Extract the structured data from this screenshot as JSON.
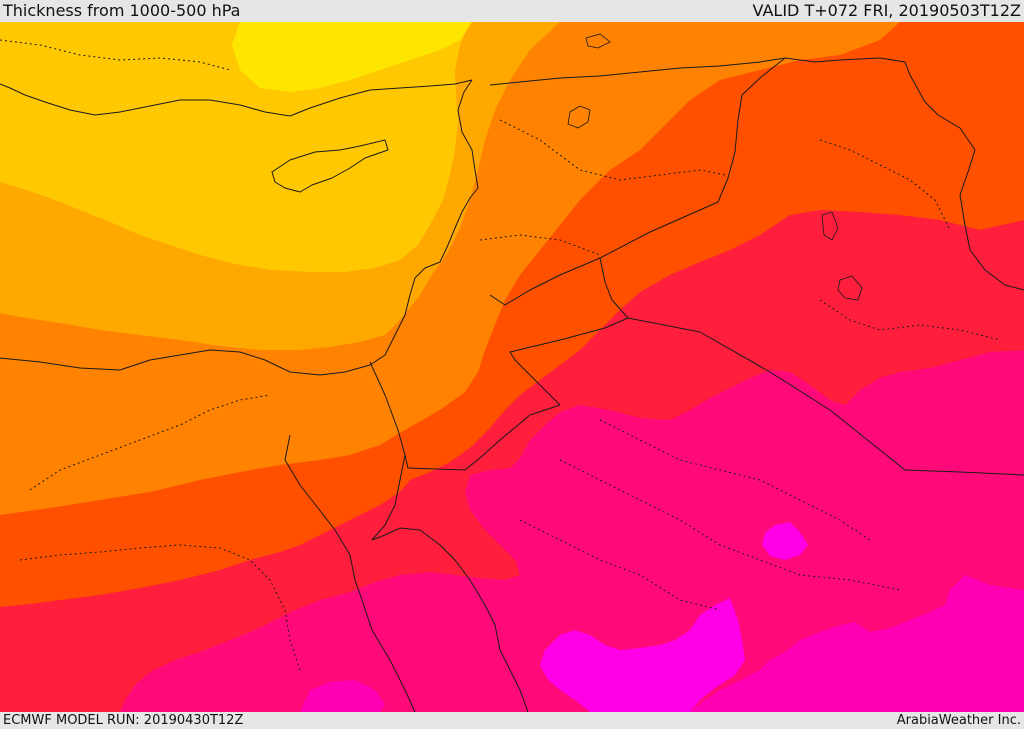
{
  "header": {
    "title": "Thickness from 1000-500 hPa",
    "valid": "VALID T+072 FRI, 20190503T12Z"
  },
  "footer": {
    "model_run": "ECMWF MODEL RUN: 20190430T12Z",
    "credit": "ArabiaWeather Inc."
  },
  "colors": {
    "band_1": "#ffe600",
    "band_2": "#ffc800",
    "band_3": "#ffa800",
    "band_4": "#ff8200",
    "band_5": "#ff5000",
    "band_6": "#ff1e3c",
    "band_7": "#ff0a78",
    "band_8": "#ff00b4",
    "band_9": "#ff00e6",
    "coastline": "#1a1a1a"
  }
}
